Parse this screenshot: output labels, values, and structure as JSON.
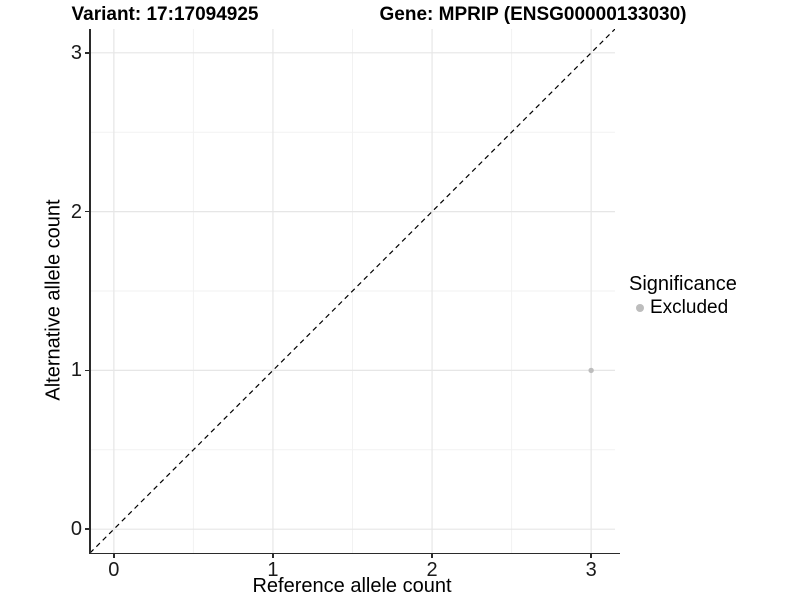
{
  "header": {
    "variant_title": "Variant: 17:17094925",
    "gene_title": "Gene: MPRIP (ENSG00000133030)"
  },
  "chart_data": {
    "type": "scatter",
    "xlabel": "Reference allele count",
    "ylabel": "Alternative allele count",
    "xlim": [
      -0.15,
      3.15
    ],
    "ylim": [
      -0.15,
      3.15
    ],
    "x_ticks": [
      0,
      1,
      2,
      3
    ],
    "y_ticks": [
      0,
      1,
      2,
      3
    ],
    "x_minor_ticks": [
      0.5,
      1.5,
      2.5
    ],
    "y_minor_ticks": [
      0.5,
      1.5,
      2.5
    ],
    "grid": "major+minor",
    "reference_line": {
      "type": "identity y=x",
      "style": "dashed",
      "color": "#000000"
    },
    "series": [
      {
        "name": "Excluded",
        "color": "#bdbdbd",
        "points": [
          {
            "x": 3,
            "y": 1
          }
        ]
      }
    ],
    "legend": {
      "title": "Significance",
      "position": "right",
      "items": [
        {
          "label": "Excluded",
          "color": "#bdbdbd"
        }
      ]
    }
  },
  "colors": {
    "background": "#ffffff",
    "axis_line": "#2b2b2b",
    "tick_text": "#1a1a1a",
    "title_text": "#000000",
    "grid_major": "#e6e6e6",
    "grid_minor": "#f2f2f2"
  }
}
